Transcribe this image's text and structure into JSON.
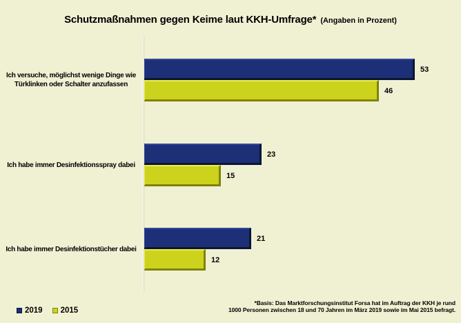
{
  "title": "Schutzmaßnahmen gegen Keime laut KKH-Umfrage*",
  "subtitle": "(Angaben in Prozent)",
  "legend": [
    {
      "label": "2019",
      "color": "#1d2f77"
    },
    {
      "label": "2015",
      "color": "#cdd21d"
    }
  ],
  "footnote": {
    "line1": "*Basis: Das Marktforschungsinstitut Forsa hat im Auftrag der KKH je rund",
    "line2": "1000 Personen zwischen 18 und 70 Jahren im März 2019 sowie im Mai 2015 befragt."
  },
  "colors": {
    "background": "#f0f1d3",
    "bar_2019": "#1d2f77",
    "bar_2015": "#cdd21d",
    "text": "#000000"
  },
  "chart_data": {
    "type": "bar",
    "orientation": "horizontal",
    "title": "Schutzmaßnahmen gegen Keime laut KKH-Umfrage*",
    "subtitle": "(Angaben in Prozent)",
    "categories": [
      "Ich versuche, möglichst wenige Dinge wie Türklinken oder Schalter anzufassen",
      "Ich habe immer Desinfektionsspray dabei",
      "Ich habe immer Desinfektionstücher dabei"
    ],
    "series": [
      {
        "name": "2019",
        "color": "#1d2f77",
        "values": [
          53,
          23,
          21
        ]
      },
      {
        "name": "2015",
        "color": "#cdd21d",
        "values": [
          46,
          15,
          12
        ]
      }
    ],
    "value_unit": "percent",
    "xlim": [
      0,
      62
    ],
    "grid": false,
    "legend_position": "bottom-left",
    "value_labels": "outside-end"
  }
}
